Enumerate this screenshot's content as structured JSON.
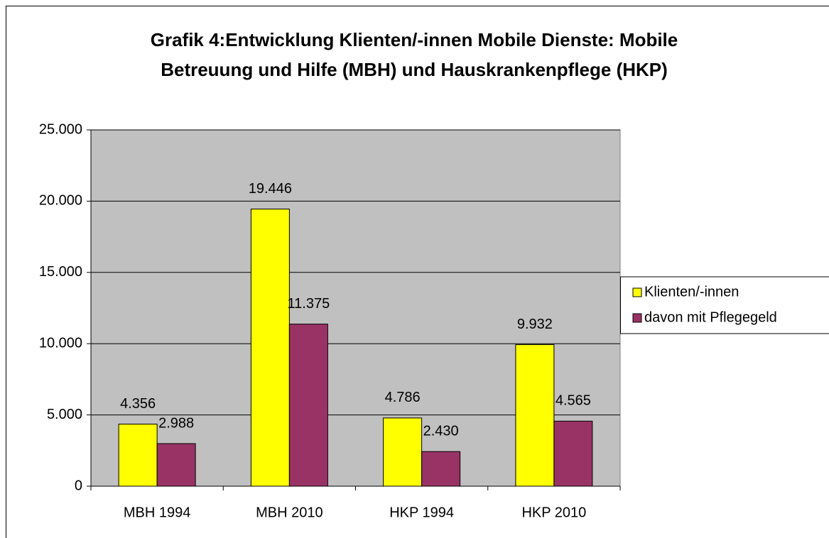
{
  "chart_data": {
    "type": "bar",
    "title": [
      "Grafik 4:Entwicklung Klienten/-innen Mobile Dienste: Mobile",
      "Betreuung und Hilfe (MBH) und Hauskrankenpflege (HKP)"
    ],
    "categories": [
      "MBH 1994",
      "MBH 2010",
      "HKP 1994",
      "HKP 2010"
    ],
    "series": [
      {
        "name": "Klienten/-innen",
        "color": "#ffff00",
        "values": [
          4356,
          19446,
          4786,
          9932
        ],
        "value_labels": [
          "4.356",
          "19.446",
          "4.786",
          "9.932"
        ]
      },
      {
        "name": "davon mit Pflegegeld",
        "color": "#993366",
        "values": [
          2988,
          11375,
          2430,
          4565
        ],
        "value_labels": [
          "2.988",
          "11.375",
          "2.430",
          "4.565"
        ]
      }
    ],
    "ylim": [
      0,
      25000
    ],
    "yticks": [
      0,
      {
        "value": 5000,
        "label": "5.000"
      },
      {
        "value": 10000,
        "label": "10.000"
      },
      {
        "value": 15000,
        "label": "15.000"
      },
      {
        "value": 20000,
        "label": "20.000"
      },
      {
        "value": 25000,
        "label": "25.000"
      }
    ],
    "grid": true,
    "legend": "right",
    "plot_background": "#c0c0c0"
  }
}
